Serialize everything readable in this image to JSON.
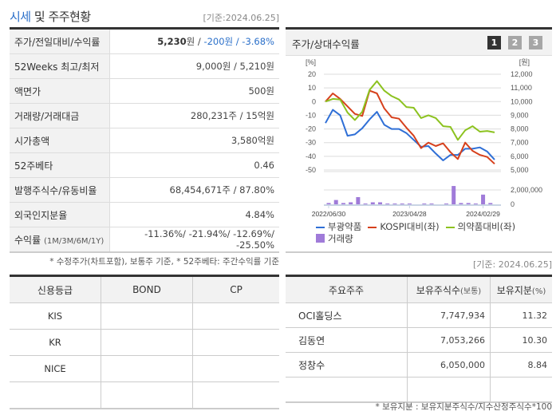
{
  "header": {
    "title_accent": "시세",
    "title_rest": " 및 주주현황",
    "date": "[기준:2024.06.25]"
  },
  "price_info": {
    "rows": [
      {
        "label": "주가/전일대비/수익률",
        "value_bold": "5,230",
        "value_unit": "원 / ",
        "value_change": "-200원 / -3.68%"
      },
      {
        "label": "52Weeks 최고/최저",
        "value": "9,000원 / 5,210원"
      },
      {
        "label": "액면가",
        "value": "500원"
      },
      {
        "label": "거래량/거래대금",
        "value": "280,231주 / 15억원"
      },
      {
        "label": "시가총액",
        "value": "3,580억원"
      },
      {
        "label": "52주베타",
        "value": "0.46"
      },
      {
        "label": "발행주식수/유동비율",
        "value": "68,454,671주 / 87.80%"
      },
      {
        "label": "외국인지분율",
        "value": "4.84%"
      },
      {
        "label": "수익률",
        "label_sub": "(1M/3M/6M/1Y)",
        "value": "-11.36%/ -21.94%/ -12.69%/ -25.50%"
      }
    ],
    "footnote": "* 수정주가(차트포함), 보통주 기준, * 52주베타: 주간수익률 기준"
  },
  "chart_panel": {
    "title": "주가/상대수익률",
    "page_buttons": [
      "1",
      "2",
      "3"
    ],
    "active_page": "1"
  },
  "chart_data": {
    "type": "line",
    "title": "주가/상대수익률",
    "left_axis_label": "[%]",
    "right_axis_label": "[원]",
    "left_ticks": [
      "20",
      "10",
      "0",
      "-10",
      "-20",
      "-30",
      "-40",
      "-50"
    ],
    "right_ticks": [
      "12,000",
      "11,000",
      "10,000",
      "9,000",
      "8,000",
      "7,000",
      "6,000",
      "5,000"
    ],
    "volume_ticks": [
      "2,000,000",
      "0"
    ],
    "x_labels": [
      "2022/06/30",
      "2023/04/28",
      "2024/02/29"
    ],
    "ylim_left": [
      -50,
      20
    ],
    "ylim_right": [
      5000,
      12000
    ],
    "grid": true,
    "legend_position": "bottom",
    "series": [
      {
        "name": "부광약품",
        "color": "#2f6fd6",
        "axis": "right",
        "values": [
          -15.7,
          -6,
          -10,
          -25,
          -24,
          -19.5,
          -13,
          -7.5,
          -17,
          -20,
          -20,
          -23,
          -28,
          -33,
          -32.5,
          -38,
          -43,
          -39,
          -39,
          -34.5,
          -34.5,
          -33.5,
          -36.5,
          -42.5
        ]
      },
      {
        "name": "KOSPI대비(좌)",
        "color": "#d6401c",
        "axis": "left",
        "values": [
          0,
          6,
          2,
          -3.5,
          -9,
          -10.5,
          8,
          6,
          -5,
          -11.5,
          -12.5,
          -19,
          -25,
          -34,
          -30,
          -32.5,
          -30.5,
          -37,
          -42,
          -30,
          -36,
          -39,
          -40.5,
          -45.5
        ]
      },
      {
        "name": "의약품대비(좌)",
        "color": "#8cc21f",
        "axis": "left",
        "values": [
          0,
          2,
          1.5,
          -8,
          -13.5,
          -7.5,
          8.5,
          15,
          8,
          4,
          1.5,
          -4,
          -4.5,
          -12,
          -10,
          -12,
          -18,
          -18.5,
          -28,
          -21,
          -18,
          -22,
          -21.5,
          -22.5
        ]
      },
      {
        "name": "거래량",
        "color": "#a07bd9",
        "axis": "volume",
        "type": "bar",
        "values": [
          180000,
          600000,
          180000,
          280000,
          1000000,
          110000,
          280000,
          280000,
          110000,
          110000,
          110000,
          110000,
          0,
          110000,
          110000,
          0,
          110000,
          2550000,
          180000,
          180000,
          110000,
          1350000,
          180000,
          0
        ]
      }
    ]
  },
  "legend": [
    {
      "label": "부광약품",
      "color": "#2f6fd6",
      "kind": "line"
    },
    {
      "label": "KOSPI대비(좌)",
      "color": "#d6401c",
      "kind": "line"
    },
    {
      "label": "의약품대비(좌)",
      "color": "#8cc21f",
      "kind": "line"
    },
    {
      "label": "거래량",
      "color": "#a07bd9",
      "kind": "box"
    }
  ],
  "shareholder_date": "[기준: 2024.06.25]",
  "credit": {
    "headers": [
      "신용등급",
      "BOND",
      "CP"
    ],
    "rows": [
      [
        "KIS",
        "",
        ""
      ],
      [
        "KR",
        "",
        ""
      ],
      [
        "NICE",
        "",
        ""
      ],
      [
        "",
        "",
        ""
      ]
    ]
  },
  "shareholders": {
    "headers": [
      "주요주주",
      "보유주식수",
      "(보통)",
      "보유지분",
      "(%)"
    ],
    "rows": [
      [
        "OCI홀딩스",
        "7,747,934",
        "11.32"
      ],
      [
        "김동연",
        "7,053,266",
        "10.30"
      ],
      [
        "정창수",
        "6,050,000",
        "8.84"
      ],
      [
        "",
        "",
        ""
      ]
    ],
    "footnote": "* 보유지분 : 보유지분주식수/지수산정주식수*100"
  }
}
